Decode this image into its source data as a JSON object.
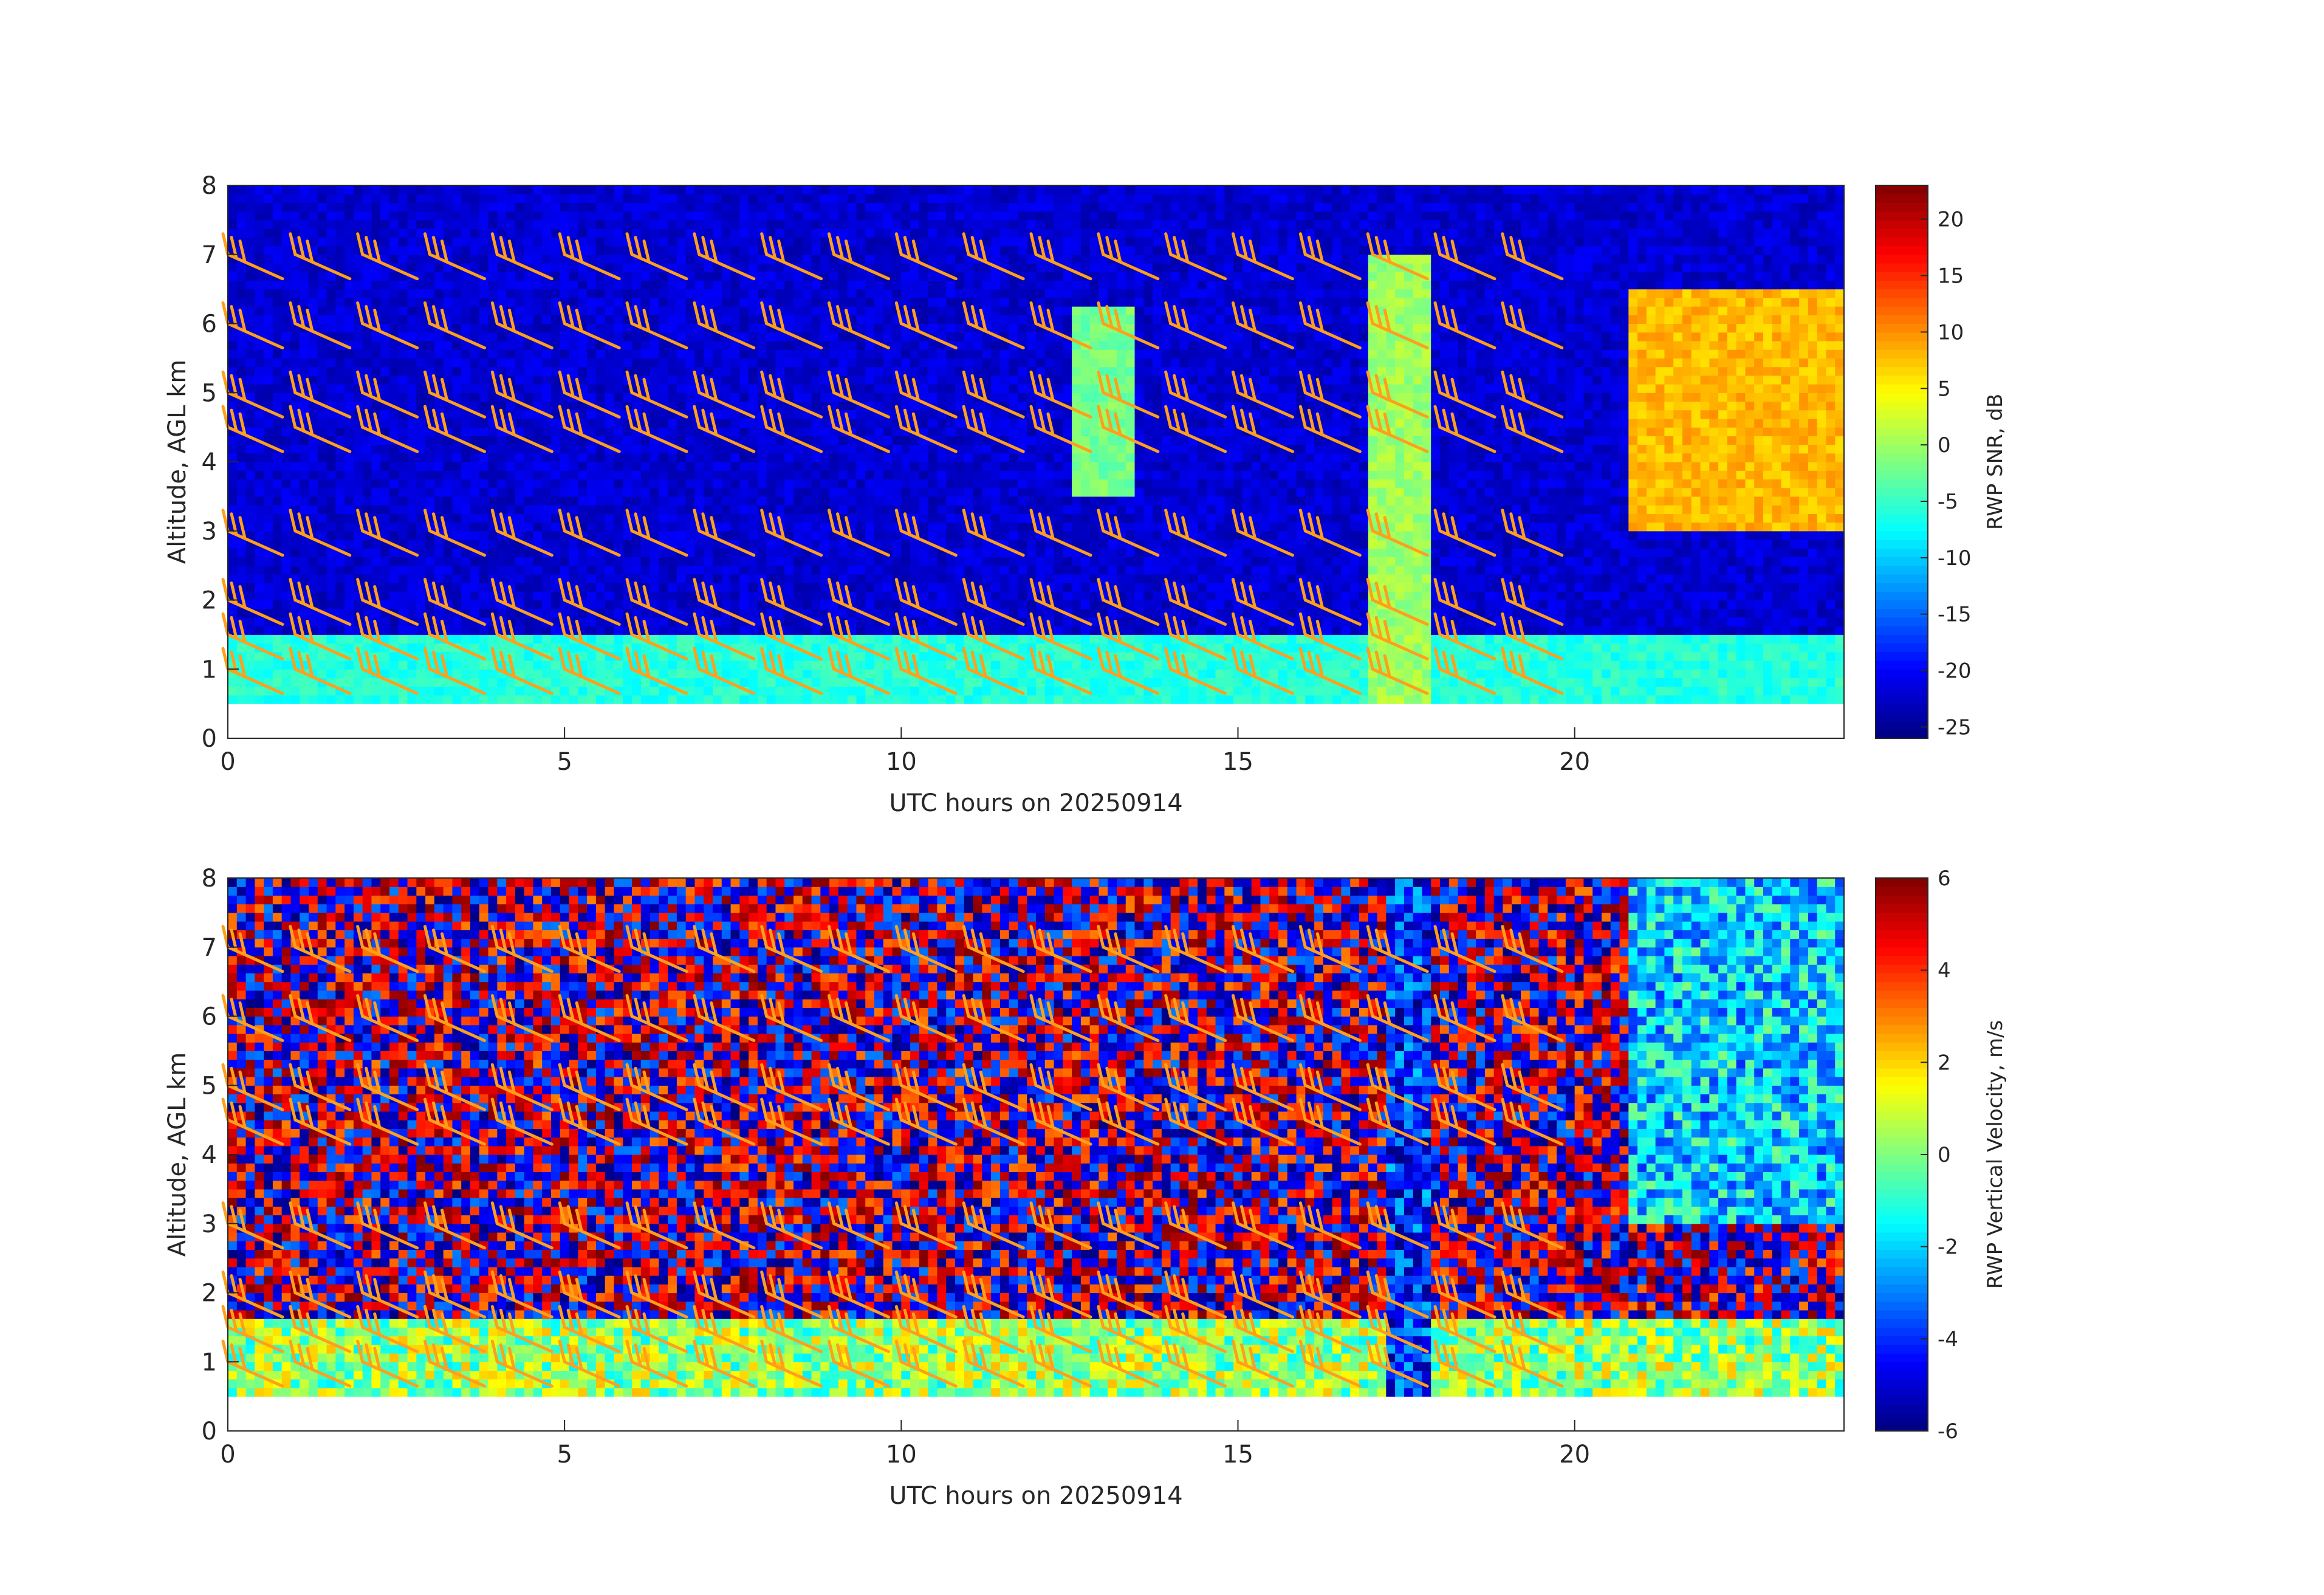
{
  "chart_data": [
    {
      "type": "heatmap",
      "panel": "top",
      "xlabel": "UTC hours on 20250914",
      "ylabel": "Altitude, AGL km",
      "xlim": [
        0,
        24
      ],
      "ylim": [
        0,
        8
      ],
      "xticks": [
        "0",
        "5",
        "10",
        "15",
        "20"
      ],
      "yticks": [
        "0",
        "1",
        "2",
        "3",
        "4",
        "5",
        "6",
        "7",
        "8"
      ],
      "colorbar": {
        "label": "RWP SNR, dB",
        "range": [
          -26,
          23
        ],
        "ticks": [
          "-25",
          "-20",
          "-15",
          "-10",
          "-5",
          "0",
          "5",
          "10",
          "15",
          "20"
        ],
        "colormap": "jet"
      },
      "data_range_altitude_km": [
        0.5,
        8.0
      ],
      "background_value": -22,
      "features": [
        {
          "desc": "boundary layer echo",
          "x": [
            0,
            24
          ],
          "y": [
            0.5,
            1.5
          ],
          "value": -6
        },
        {
          "desc": "mid-level cloud echoes",
          "x": [
            12.5,
            13.5
          ],
          "y": [
            3.5,
            6.2
          ],
          "value": -2
        },
        {
          "desc": "convective column",
          "x": [
            17.0,
            17.8
          ],
          "y": [
            0.5,
            7.0
          ],
          "value": 0
        },
        {
          "desc": "strong layered echo",
          "x": [
            20.8,
            24
          ],
          "y": [
            3.0,
            6.5
          ],
          "value": 8
        }
      ],
      "wind_barbs": {
        "color": "#ff9f1c",
        "times_hours": [
          0,
          1,
          2,
          3,
          4,
          5,
          6,
          7,
          8,
          9,
          10,
          11,
          12,
          13,
          14,
          15,
          16,
          17,
          18,
          19
        ],
        "levels_km": [
          1.0,
          1.5,
          2.0,
          3.0,
          4.5,
          5.0,
          6.0,
          7.0
        ]
      }
    },
    {
      "type": "heatmap",
      "panel": "bottom",
      "xlabel": "UTC hours on 20250914",
      "ylabel": "Altitude, AGL km",
      "xlim": [
        0,
        24
      ],
      "ylim": [
        0,
        8
      ],
      "xticks": [
        "0",
        "5",
        "10",
        "15",
        "20"
      ],
      "yticks": [
        "0",
        "1",
        "2",
        "3",
        "4",
        "5",
        "6",
        "7",
        "8"
      ],
      "colorbar": {
        "label": "RWP Vertical Velocity, m/s",
        "range": [
          -6,
          6
        ],
        "ticks": [
          "-6",
          "-4",
          "-2",
          "0",
          "2",
          "4",
          "6"
        ],
        "colormap": "jet"
      },
      "data_range_altitude_km": [
        0.5,
        8.0
      ],
      "background_value": "noise",
      "features": [
        {
          "desc": "boundary layer",
          "x": [
            0,
            24
          ],
          "y": [
            0.5,
            1.6
          ],
          "value": 0.3
        },
        {
          "desc": "downdraft column",
          "x": [
            17.2,
            17.8
          ],
          "y": [
            0.5,
            8.0
          ],
          "value": -4
        },
        {
          "desc": "falling precipitation",
          "x": [
            20.8,
            24
          ],
          "y": [
            3.0,
            8.0
          ],
          "value": -2
        }
      ],
      "wind_barbs": {
        "color": "#ff9f1c",
        "times_hours": [
          0,
          1,
          2,
          3,
          4,
          5,
          6,
          7,
          8,
          9,
          10,
          11,
          12,
          13,
          14,
          15,
          16,
          17,
          18,
          19
        ],
        "levels_km": [
          1.0,
          1.5,
          2.0,
          3.0,
          4.5,
          5.0,
          6.0,
          7.0
        ]
      }
    }
  ]
}
